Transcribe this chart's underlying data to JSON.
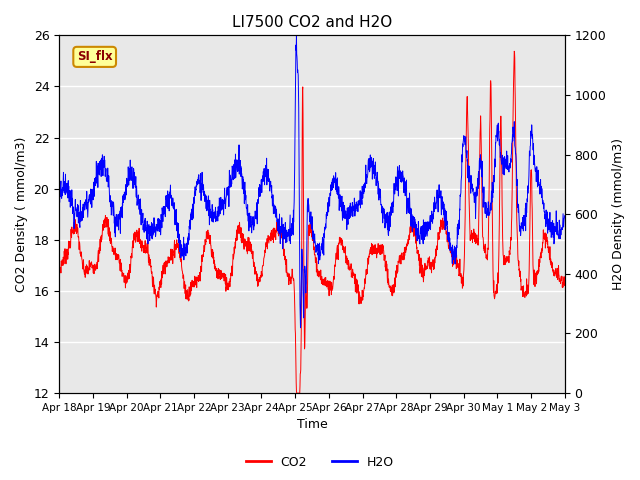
{
  "title": "LI7500 CO2 and H2O",
  "xlabel": "Time",
  "ylabel_left": "CO2 Density ( mmol/m3)",
  "ylabel_right": "H2O Density (mmol/m3)",
  "co2_ylim": [
    12,
    26
  ],
  "h2o_ylim": [
    0,
    1200
  ],
  "co2_color": "#FF0000",
  "h2o_color": "#0000FF",
  "legend_labels": [
    "CO2",
    "H2O"
  ],
  "annotation_text": "SI_flx",
  "annotation_bg": "#FFFF99",
  "annotation_border": "#CC8800",
  "fig_bg_color": "#FFFFFF",
  "plot_bg_color": "#E8E8E8",
  "xtick_labels": [
    "Apr 18",
    "Apr 19",
    "Apr 20",
    "Apr 21",
    "Apr 22",
    "Apr 23",
    "Apr 24",
    "Apr 25",
    "Apr 26",
    "Apr 27",
    "Apr 28",
    "Apr 29",
    "Apr 30",
    "May 1",
    "May 2",
    "May 3"
  ],
  "n_points": 2000,
  "linewidth": 0.7
}
